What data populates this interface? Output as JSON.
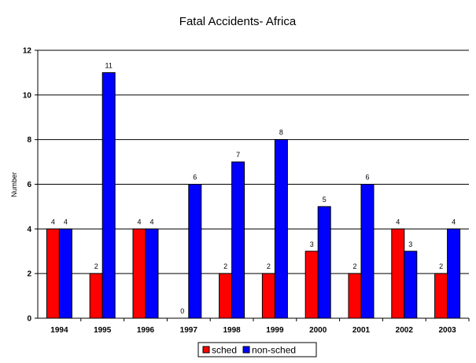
{
  "chart_data": {
    "type": "bar",
    "title": "Fatal Accidents- Africa",
    "xlabel": "",
    "ylabel": "Number",
    "categories": [
      "1994",
      "1995",
      "1996",
      "1997",
      "1998",
      "1999",
      "2000",
      "2001",
      "2002",
      "2003"
    ],
    "series": [
      {
        "name": "sched",
        "color": "#ff0000",
        "values": [
          4,
          2,
          4,
          0,
          2,
          2,
          3,
          2,
          4,
          2
        ]
      },
      {
        "name": "non-sched",
        "color": "#0000ff",
        "values": [
          4,
          11,
          4,
          6,
          7,
          8,
          5,
          6,
          3,
          4
        ]
      }
    ],
    "ylim": [
      0,
      12
    ],
    "yticks": [
      0,
      2,
      4,
      6,
      8,
      10,
      12
    ],
    "grid": true,
    "legend": "bottom-center"
  }
}
